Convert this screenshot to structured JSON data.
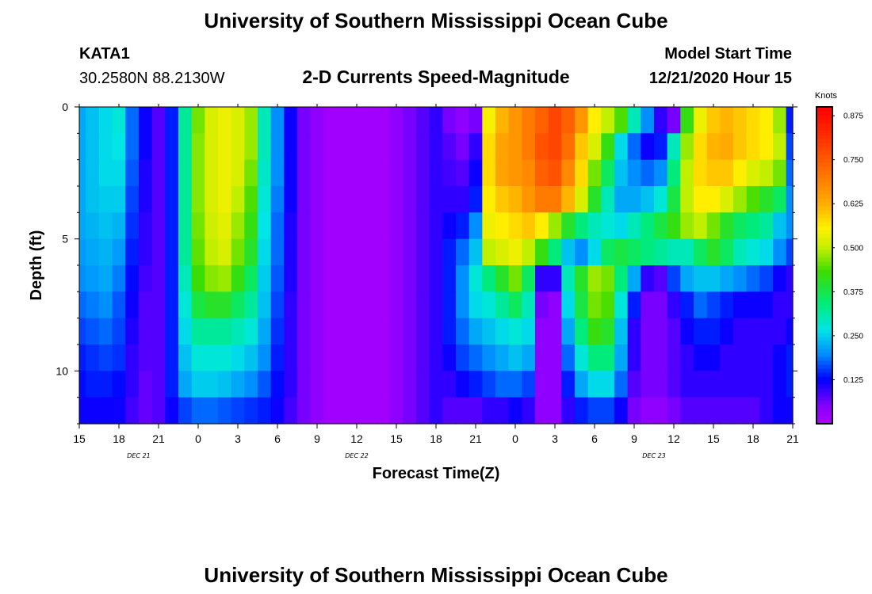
{
  "header": {
    "title_top": "University of Southern Mississippi Ocean Cube",
    "title_bottom": "University of Southern Mississippi Ocean Cube",
    "station": "KATA1",
    "coords": "30.2580N 88.2130W",
    "plot_title": "2-D Currents Speed-Magnitude",
    "model_start_label": "Model Start Time",
    "model_start_value": "12/21/2020 Hour 15"
  },
  "chart_data": {
    "type": "heatmap",
    "title": "2-D Currents Speed-Magnitude",
    "xlabel": "Forecast Time(Z)",
    "ylabel": "Depth (ft)",
    "x_tick_labels": [
      "15",
      "18",
      "21",
      "0",
      "3",
      "6",
      "9",
      "12",
      "15",
      "18",
      "21",
      "0",
      "3",
      "6",
      "9",
      "12",
      "15",
      "18",
      "21"
    ],
    "x_range_hours": [
      0,
      54
    ],
    "date_labels": [
      {
        "text": "DEC 21",
        "hour": 4.5
      },
      {
        "text": "DEC 22",
        "hour": 21
      },
      {
        "text": "DEC 23",
        "hour": 43.5
      }
    ],
    "y_tick_labels": [
      "0",
      "5",
      "10"
    ],
    "y_ticks": [
      0,
      5,
      10
    ],
    "y_range_ft": [
      0,
      12
    ],
    "colorbar": {
      "unit": "Knots",
      "range": [
        0,
        0.9
      ],
      "tick_labels": [
        "0.875",
        "0.750",
        "0.625",
        "0.500",
        "0.375",
        "0.250",
        "0.125"
      ],
      "tick_values": [
        0.875,
        0.75,
        0.625,
        0.5,
        0.375,
        0.25,
        0.125
      ]
    },
    "grid": {
      "time_step_hours": 1,
      "depth_levels_ft": [
        0.5,
        1.5,
        2.5,
        3.5,
        4.5,
        5.5,
        6.5,
        7.5,
        8.5,
        9.5,
        10.5,
        11.5
      ],
      "note": "speed values in knots, rows = depth levels (top to bottom), columns = hourly steps from hour 0 (12/21 15Z) to hour 54",
      "speed": [
        [
          0.22,
          0.24,
          0.26,
          0.28,
          0.18,
          0.12,
          0.08,
          0.14,
          0.32,
          0.46,
          0.52,
          0.54,
          0.52,
          0.48,
          0.3,
          0.2,
          0.12,
          0.06,
          0.04,
          0.02,
          0.02,
          0.02,
          0.02,
          0.02,
          0.04,
          0.06,
          0.08,
          0.1,
          0.06,
          0.04,
          0.06,
          0.55,
          0.62,
          0.66,
          0.7,
          0.74,
          0.78,
          0.74,
          0.66,
          0.56,
          0.5,
          0.44,
          0.3,
          0.2,
          0.1,
          0.06,
          0.42,
          0.54,
          0.6,
          0.62,
          0.6,
          0.58,
          0.56,
          0.48,
          0.14
        ],
        [
          0.22,
          0.24,
          0.26,
          0.27,
          0.18,
          0.12,
          0.08,
          0.14,
          0.32,
          0.47,
          0.52,
          0.54,
          0.52,
          0.48,
          0.3,
          0.2,
          0.12,
          0.06,
          0.04,
          0.02,
          0.02,
          0.02,
          0.02,
          0.02,
          0.04,
          0.06,
          0.08,
          0.1,
          0.08,
          0.06,
          0.1,
          0.58,
          0.64,
          0.66,
          0.7,
          0.76,
          0.78,
          0.72,
          0.6,
          0.52,
          0.42,
          0.26,
          0.18,
          0.12,
          0.14,
          0.3,
          0.48,
          0.58,
          0.62,
          0.63,
          0.6,
          0.58,
          0.56,
          0.5,
          0.16
        ],
        [
          0.22,
          0.24,
          0.26,
          0.26,
          0.17,
          0.11,
          0.08,
          0.14,
          0.32,
          0.47,
          0.52,
          0.54,
          0.52,
          0.46,
          0.29,
          0.2,
          0.12,
          0.06,
          0.04,
          0.02,
          0.02,
          0.02,
          0.02,
          0.02,
          0.04,
          0.06,
          0.08,
          0.1,
          0.09,
          0.08,
          0.12,
          0.58,
          0.64,
          0.66,
          0.68,
          0.74,
          0.76,
          0.68,
          0.58,
          0.46,
          0.36,
          0.24,
          0.2,
          0.18,
          0.2,
          0.34,
          0.5,
          0.58,
          0.6,
          0.6,
          0.56,
          0.52,
          0.5,
          0.46,
          0.18
        ],
        [
          0.22,
          0.24,
          0.25,
          0.25,
          0.16,
          0.11,
          0.08,
          0.14,
          0.32,
          0.47,
          0.52,
          0.54,
          0.5,
          0.44,
          0.28,
          0.19,
          0.12,
          0.06,
          0.04,
          0.02,
          0.02,
          0.02,
          0.02,
          0.02,
          0.04,
          0.06,
          0.08,
          0.1,
          0.1,
          0.1,
          0.14,
          0.56,
          0.6,
          0.62,
          0.66,
          0.7,
          0.7,
          0.62,
          0.52,
          0.4,
          0.3,
          0.22,
          0.22,
          0.24,
          0.28,
          0.38,
          0.5,
          0.56,
          0.56,
          0.52,
          0.48,
          0.44,
          0.4,
          0.36,
          0.2
        ],
        [
          0.22,
          0.23,
          0.24,
          0.23,
          0.15,
          0.1,
          0.08,
          0.14,
          0.32,
          0.46,
          0.51,
          0.53,
          0.48,
          0.42,
          0.27,
          0.18,
          0.11,
          0.06,
          0.04,
          0.02,
          0.02,
          0.02,
          0.02,
          0.02,
          0.04,
          0.06,
          0.08,
          0.1,
          0.12,
          0.14,
          0.2,
          0.54,
          0.56,
          0.58,
          0.6,
          0.56,
          0.48,
          0.4,
          0.34,
          0.3,
          0.28,
          0.26,
          0.3,
          0.34,
          0.38,
          0.42,
          0.48,
          0.5,
          0.46,
          0.4,
          0.36,
          0.34,
          0.32,
          0.24,
          0.2
        ],
        [
          0.21,
          0.22,
          0.23,
          0.21,
          0.14,
          0.1,
          0.08,
          0.14,
          0.32,
          0.45,
          0.5,
          0.52,
          0.46,
          0.4,
          0.26,
          0.18,
          0.11,
          0.06,
          0.04,
          0.02,
          0.02,
          0.02,
          0.02,
          0.02,
          0.04,
          0.06,
          0.08,
          0.1,
          0.14,
          0.18,
          0.24,
          0.5,
          0.52,
          0.54,
          0.5,
          0.42,
          0.34,
          0.24,
          0.2,
          0.26,
          0.36,
          0.38,
          0.36,
          0.34,
          0.32,
          0.3,
          0.3,
          0.36,
          0.4,
          0.36,
          0.3,
          0.28,
          0.26,
          0.2,
          0.16
        ],
        [
          0.2,
          0.21,
          0.22,
          0.19,
          0.13,
          0.09,
          0.08,
          0.14,
          0.3,
          0.43,
          0.47,
          0.48,
          0.42,
          0.36,
          0.25,
          0.17,
          0.11,
          0.06,
          0.04,
          0.02,
          0.02,
          0.02,
          0.02,
          0.02,
          0.04,
          0.06,
          0.08,
          0.1,
          0.14,
          0.2,
          0.28,
          0.34,
          0.4,
          0.46,
          0.36,
          0.1,
          0.1,
          0.3,
          0.4,
          0.48,
          0.46,
          0.34,
          0.22,
          0.1,
          0.08,
          0.16,
          0.22,
          0.24,
          0.24,
          0.22,
          0.2,
          0.18,
          0.16,
          0.12,
          0.1
        ],
        [
          0.18,
          0.19,
          0.2,
          0.17,
          0.12,
          0.08,
          0.08,
          0.14,
          0.28,
          0.38,
          0.4,
          0.4,
          0.36,
          0.32,
          0.24,
          0.16,
          0.1,
          0.06,
          0.04,
          0.02,
          0.02,
          0.02,
          0.02,
          0.02,
          0.04,
          0.06,
          0.08,
          0.1,
          0.14,
          0.2,
          0.26,
          0.28,
          0.32,
          0.36,
          0.3,
          0.06,
          0.04,
          0.26,
          0.38,
          0.46,
          0.44,
          0.28,
          0.14,
          0.06,
          0.06,
          0.1,
          0.14,
          0.18,
          0.16,
          0.14,
          0.12,
          0.12,
          0.12,
          0.1,
          0.1
        ],
        [
          0.16,
          0.17,
          0.18,
          0.16,
          0.11,
          0.08,
          0.08,
          0.14,
          0.26,
          0.32,
          0.32,
          0.32,
          0.3,
          0.28,
          0.22,
          0.15,
          0.1,
          0.06,
          0.04,
          0.02,
          0.02,
          0.02,
          0.02,
          0.02,
          0.04,
          0.06,
          0.08,
          0.1,
          0.14,
          0.18,
          0.22,
          0.24,
          0.26,
          0.28,
          0.26,
          0.04,
          0.04,
          0.22,
          0.34,
          0.42,
          0.4,
          0.24,
          0.1,
          0.06,
          0.06,
          0.08,
          0.12,
          0.14,
          0.14,
          0.12,
          0.1,
          0.1,
          0.1,
          0.1,
          0.12
        ],
        [
          0.14,
          0.15,
          0.16,
          0.15,
          0.1,
          0.08,
          0.08,
          0.14,
          0.24,
          0.28,
          0.28,
          0.28,
          0.26,
          0.24,
          0.2,
          0.14,
          0.1,
          0.06,
          0.04,
          0.02,
          0.02,
          0.02,
          0.02,
          0.02,
          0.04,
          0.06,
          0.08,
          0.1,
          0.12,
          0.16,
          0.18,
          0.2,
          0.22,
          0.24,
          0.22,
          0.04,
          0.04,
          0.18,
          0.28,
          0.34,
          0.34,
          0.22,
          0.1,
          0.06,
          0.06,
          0.08,
          0.1,
          0.12,
          0.12,
          0.1,
          0.1,
          0.1,
          0.1,
          0.12,
          0.14
        ],
        [
          0.13,
          0.14,
          0.14,
          0.13,
          0.1,
          0.07,
          0.08,
          0.14,
          0.22,
          0.25,
          0.25,
          0.24,
          0.22,
          0.2,
          0.17,
          0.13,
          0.1,
          0.06,
          0.04,
          0.02,
          0.02,
          0.02,
          0.02,
          0.02,
          0.04,
          0.06,
          0.08,
          0.1,
          0.1,
          0.12,
          0.14,
          0.16,
          0.18,
          0.18,
          0.16,
          0.04,
          0.04,
          0.14,
          0.22,
          0.26,
          0.26,
          0.18,
          0.08,
          0.06,
          0.06,
          0.08,
          0.1,
          0.1,
          0.1,
          0.1,
          0.1,
          0.1,
          0.1,
          0.12,
          0.14
        ],
        [
          0.12,
          0.12,
          0.12,
          0.12,
          0.09,
          0.07,
          0.08,
          0.12,
          0.16,
          0.18,
          0.18,
          0.17,
          0.16,
          0.15,
          0.14,
          0.12,
          0.09,
          0.06,
          0.04,
          0.02,
          0.02,
          0.02,
          0.02,
          0.02,
          0.04,
          0.06,
          0.08,
          0.1,
          0.08,
          0.08,
          0.08,
          0.1,
          0.1,
          0.12,
          0.1,
          0.04,
          0.04,
          0.1,
          0.14,
          0.16,
          0.16,
          0.12,
          0.06,
          0.04,
          0.04,
          0.06,
          0.08,
          0.08,
          0.08,
          0.08,
          0.08,
          0.08,
          0.1,
          0.12,
          0.12
        ]
      ]
    }
  }
}
